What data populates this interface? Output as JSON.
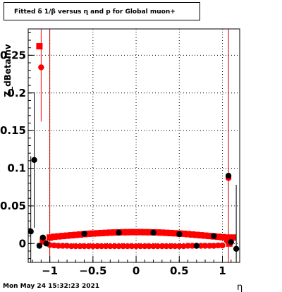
{
  "title": "Fitted δ 1/β versus η and p for Global muon+",
  "timestamp": "Mon May 24 15:32:23 2021",
  "chart_data": {
    "type": "scatter",
    "xlabel": "η",
    "ylabel": "Z_dBetaInv",
    "xlim": [
      -1.25,
      1.2
    ],
    "ylim": [
      -0.025,
      0.285
    ],
    "x_ticks": [
      -1,
      -0.5,
      0,
      0.5,
      1
    ],
    "x_tick_labels": [
      "−1",
      "−0.5",
      "0",
      "0.5",
      "1"
    ],
    "y_ticks": [
      0,
      0.05,
      0.1,
      0.15,
      0.2,
      0.25
    ],
    "y_tick_labels": [
      "0",
      "0.05",
      "0.1",
      "0.15",
      "0.2",
      "0.25"
    ],
    "grid": true,
    "vertical_lines": [
      -1.0,
      1.07
    ],
    "colors": {
      "red": "#ff0000",
      "black": "#000000",
      "line": "#cc0000"
    },
    "series": [
      {
        "marker": "square",
        "color": "#ff0000",
        "points": [
          {
            "x": -1.12,
            "y": 0.262,
            "err": 0.0
          },
          {
            "x": -1.08,
            "y": 0.003,
            "err": 0.0
          },
          {
            "x": -1.0,
            "y": 0.008,
            "err": 0.0
          },
          {
            "x": -0.95,
            "y": 0.009,
            "err": 0.0
          },
          {
            "x": -0.9,
            "y": 0.0095,
            "err": 0.0
          },
          {
            "x": -0.85,
            "y": 0.01,
            "err": 0.0
          },
          {
            "x": -0.8,
            "y": 0.0105,
            "err": 0.0
          },
          {
            "x": -0.75,
            "y": 0.011,
            "err": 0.0
          },
          {
            "x": -0.7,
            "y": 0.0115,
            "err": 0.0
          },
          {
            "x": -0.65,
            "y": 0.012,
            "err": 0.0
          },
          {
            "x": -0.6,
            "y": 0.0125,
            "err": 0.0
          },
          {
            "x": -0.55,
            "y": 0.013,
            "err": 0.0
          },
          {
            "x": -0.5,
            "y": 0.0133,
            "err": 0.0
          },
          {
            "x": -0.45,
            "y": 0.0136,
            "err": 0.0
          },
          {
            "x": -0.4,
            "y": 0.0139,
            "err": 0.0
          },
          {
            "x": -0.35,
            "y": 0.0142,
            "err": 0.0
          },
          {
            "x": -0.3,
            "y": 0.0145,
            "err": 0.0
          },
          {
            "x": -0.25,
            "y": 0.0147,
            "err": 0.0
          },
          {
            "x": -0.2,
            "y": 0.0149,
            "err": 0.0
          },
          {
            "x": -0.15,
            "y": 0.015,
            "err": 0.0
          },
          {
            "x": -0.1,
            "y": 0.0151,
            "err": 0.0
          },
          {
            "x": -0.05,
            "y": 0.0152,
            "err": 0.0
          },
          {
            "x": 0.0,
            "y": 0.0152,
            "err": 0.0
          },
          {
            "x": 0.05,
            "y": 0.0152,
            "err": 0.0
          },
          {
            "x": 0.1,
            "y": 0.0151,
            "err": 0.0
          },
          {
            "x": 0.15,
            "y": 0.015,
            "err": 0.0
          },
          {
            "x": 0.2,
            "y": 0.0149,
            "err": 0.0
          },
          {
            "x": 0.25,
            "y": 0.0147,
            "err": 0.0
          },
          {
            "x": 0.3,
            "y": 0.0145,
            "err": 0.0
          },
          {
            "x": 0.35,
            "y": 0.0142,
            "err": 0.0
          },
          {
            "x": 0.4,
            "y": 0.0139,
            "err": 0.0
          },
          {
            "x": 0.45,
            "y": 0.0136,
            "err": 0.0
          },
          {
            "x": 0.5,
            "y": 0.0133,
            "err": 0.0
          },
          {
            "x": 0.55,
            "y": 0.013,
            "err": 0.0
          },
          {
            "x": 0.6,
            "y": 0.0125,
            "err": 0.0
          },
          {
            "x": 0.65,
            "y": 0.012,
            "err": 0.0
          },
          {
            "x": 0.7,
            "y": 0.0115,
            "err": 0.0
          },
          {
            "x": 0.75,
            "y": 0.011,
            "err": 0.0
          },
          {
            "x": 0.8,
            "y": 0.0105,
            "err": 0.0
          },
          {
            "x": 0.85,
            "y": 0.01,
            "err": 0.0
          },
          {
            "x": 0.9,
            "y": 0.0095,
            "err": 0.0
          },
          {
            "x": 0.95,
            "y": 0.009,
            "err": 0.0
          },
          {
            "x": 1.0,
            "y": 0.0085,
            "err": 0.0
          },
          {
            "x": 1.05,
            "y": 0.008,
            "err": 0.0
          },
          {
            "x": 1.08,
            "y": 0.0,
            "err": 0.0
          },
          {
            "x": 1.12,
            "y": 0.008,
            "err": 0.0
          }
        ]
      },
      {
        "marker": "circle",
        "color": "#ff0000",
        "points": [
          {
            "x": -1.1,
            "y": 0.234,
            "err": 0.072
          },
          {
            "x": -1.0,
            "y": -0.002,
            "err": 0.0
          },
          {
            "x": -0.95,
            "y": -0.0025,
            "err": 0.0
          },
          {
            "x": -0.9,
            "y": -0.003,
            "err": 0.0
          },
          {
            "x": -0.85,
            "y": -0.003,
            "err": 0.0
          },
          {
            "x": -0.8,
            "y": -0.003,
            "err": 0.0
          },
          {
            "x": -0.75,
            "y": -0.0035,
            "err": 0.0
          },
          {
            "x": -0.7,
            "y": -0.0035,
            "err": 0.0
          },
          {
            "x": -0.65,
            "y": -0.0035,
            "err": 0.0
          },
          {
            "x": -0.6,
            "y": -0.0035,
            "err": 0.0
          },
          {
            "x": -0.55,
            "y": -0.0035,
            "err": 0.0
          },
          {
            "x": -0.5,
            "y": -0.0035,
            "err": 0.0
          },
          {
            "x": -0.45,
            "y": -0.0035,
            "err": 0.0
          },
          {
            "x": -0.4,
            "y": -0.0035,
            "err": 0.0
          },
          {
            "x": -0.35,
            "y": -0.0035,
            "err": 0.0
          },
          {
            "x": -0.3,
            "y": -0.0035,
            "err": 0.0
          },
          {
            "x": -0.25,
            "y": -0.0035,
            "err": 0.0
          },
          {
            "x": -0.2,
            "y": -0.0035,
            "err": 0.0
          },
          {
            "x": -0.15,
            "y": -0.0035,
            "err": 0.0
          },
          {
            "x": -0.1,
            "y": -0.0035,
            "err": 0.0
          },
          {
            "x": -0.05,
            "y": -0.0035,
            "err": 0.0
          },
          {
            "x": 0.0,
            "y": -0.0035,
            "err": 0.0
          },
          {
            "x": 0.05,
            "y": -0.0035,
            "err": 0.0
          },
          {
            "x": 0.1,
            "y": -0.0035,
            "err": 0.0
          },
          {
            "x": 0.15,
            "y": -0.0035,
            "err": 0.0
          },
          {
            "x": 0.2,
            "y": -0.0035,
            "err": 0.0
          },
          {
            "x": 0.25,
            "y": -0.0035,
            "err": 0.0
          },
          {
            "x": 0.3,
            "y": -0.0035,
            "err": 0.0
          },
          {
            "x": 0.35,
            "y": -0.0035,
            "err": 0.0
          },
          {
            "x": 0.4,
            "y": -0.0035,
            "err": 0.0
          },
          {
            "x": 0.45,
            "y": -0.0035,
            "err": 0.0
          },
          {
            "x": 0.5,
            "y": -0.0035,
            "err": 0.0
          },
          {
            "x": 0.55,
            "y": -0.0035,
            "err": 0.0
          },
          {
            "x": 0.6,
            "y": -0.003,
            "err": 0.0
          },
          {
            "x": 0.65,
            "y": -0.003,
            "err": 0.0
          },
          {
            "x": 0.7,
            "y": -0.003,
            "err": 0.0
          },
          {
            "x": 0.75,
            "y": -0.003,
            "err": 0.0
          },
          {
            "x": 0.8,
            "y": -0.003,
            "err": 0.0
          },
          {
            "x": 0.85,
            "y": -0.003,
            "err": 0.0
          },
          {
            "x": 0.9,
            "y": -0.003,
            "err": 0.0
          },
          {
            "x": 0.95,
            "y": -0.0025,
            "err": 0.0
          },
          {
            "x": 1.0,
            "y": -0.0025,
            "err": 0.0
          },
          {
            "x": 1.05,
            "y": 0.004,
            "err": 0.0
          },
          {
            "x": 1.07,
            "y": 0.087,
            "err": 0.0
          }
        ]
      },
      {
        "marker": "circle",
        "color": "#000000",
        "points": [
          {
            "x": -1.22,
            "y": 0.016,
            "err": 0.1
          },
          {
            "x": -1.18,
            "y": 0.111,
            "err": 0.09
          },
          {
            "x": -1.12,
            "y": -0.003,
            "err": 0.0
          },
          {
            "x": -1.08,
            "y": 0.008,
            "err": 0.0
          },
          {
            "x": -1.04,
            "y": 0.0,
            "err": 0.0
          },
          {
            "x": -0.6,
            "y": 0.013,
            "err": 0.0
          },
          {
            "x": -0.2,
            "y": 0.0145,
            "err": 0.0
          },
          {
            "x": 0.2,
            "y": 0.0145,
            "err": 0.0
          },
          {
            "x": 0.5,
            "y": 0.0125,
            "err": 0.0
          },
          {
            "x": 0.7,
            "y": -0.003,
            "err": 0.0
          },
          {
            "x": 0.9,
            "y": 0.01,
            "err": 0.0
          },
          {
            "x": 1.07,
            "y": 0.09,
            "err": 0.0
          },
          {
            "x": 1.1,
            "y": 0.002,
            "err": 0.0
          },
          {
            "x": 1.16,
            "y": -0.007,
            "err": 0.085
          }
        ]
      }
    ]
  }
}
